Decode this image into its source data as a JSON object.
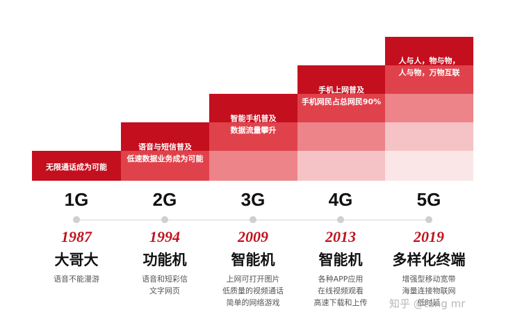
{
  "generations": [
    {
      "gen": "1G",
      "year": "1987",
      "device": "大哥大",
      "desc": [
        "语音不能漫游"
      ],
      "bar_text": [
        "无限通话成为可能"
      ]
    },
    {
      "gen": "2G",
      "year": "1994",
      "device": "功能机",
      "desc": [
        "语音和短彩信",
        "文字网页"
      ],
      "bar_text": [
        "语音与短信普及",
        "低速数据业务成为可能"
      ]
    },
    {
      "gen": "3G",
      "year": "2009",
      "device": "智能机",
      "desc": [
        "上网可打开图片",
        "低质量的视频通话",
        "简单的网络游戏"
      ],
      "bar_text": [
        "智能手机普及",
        "数据流量攀升"
      ]
    },
    {
      "gen": "4G",
      "year": "2013",
      "device": "智能机",
      "desc": [
        "各种APP应用",
        "在线视频观看",
        "高速下载和上传"
      ],
      "bar_text": [
        "手机上网普及",
        "手机网民占总网民90%"
      ]
    },
    {
      "gen": "5G",
      "year": "2019",
      "device": "多样化终端",
      "desc": [
        "增强型移动宽带",
        "海量连接物联网",
        "低时延"
      ],
      "bar_text": [
        "人与人，物与物，",
        "人与物，万物互联"
      ]
    }
  ],
  "colors": {
    "band": [
      "#c40f1e",
      "#e0424c",
      "#ec8489",
      "#f5c3c6",
      "#fbe6e7"
    ],
    "year": "#c0121f"
  },
  "watermark": "知乎 @tang mr"
}
